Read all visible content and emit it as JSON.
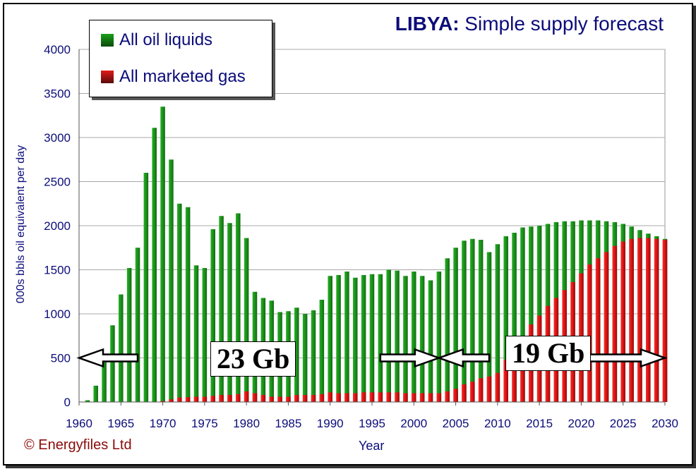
{
  "chart_data": {
    "type": "bar",
    "title_bold": "LIBYA:",
    "title_rest": " Simple supply forecast",
    "xlabel": "Year",
    "ylabel": "000s bbls oil equivalent per day",
    "ylim": [
      0,
      4000
    ],
    "yticks": [
      "0",
      "500",
      "1000",
      "1500",
      "2000",
      "2500",
      "3000",
      "3500",
      "4000"
    ],
    "xticks": [
      "1960",
      "1965",
      "1970",
      "1975",
      "1980",
      "1985",
      "1990",
      "1995",
      "2000",
      "2005",
      "2010",
      "2015",
      "2020",
      "2025",
      "2030"
    ],
    "grid": true,
    "legend_position": "top-left",
    "x_start": 1960,
    "series": [
      {
        "name": "All oil liquids",
        "color": "#1a8a1a",
        "values": [
          0,
          20,
          185,
          450,
          870,
          1220,
          1520,
          1750,
          2600,
          3110,
          3350,
          2750,
          2250,
          2210,
          1550,
          1520,
          1960,
          2110,
          2030,
          2140,
          1860,
          1250,
          1180,
          1150,
          1020,
          1030,
          1070,
          1000,
          1040,
          1160,
          1430,
          1440,
          1480,
          1410,
          1440,
          1450,
          1450,
          1500,
          1490,
          1430,
          1480,
          1430,
          1380,
          1480,
          1630,
          1750,
          1830,
          1850,
          1840,
          1700,
          1790,
          1880,
          1920,
          1980,
          1990,
          2000,
          2020,
          2040,
          2050,
          2050,
          2060,
          2060,
          2060,
          2050,
          2040,
          2020,
          1990,
          1950,
          1910,
          1880,
          1850
        ]
      },
      {
        "name": "All marketed gas",
        "color": "#d11010",
        "values": [
          0,
          0,
          0,
          0,
          0,
          0,
          0,
          0,
          0,
          0,
          10,
          30,
          50,
          55,
          60,
          60,
          70,
          80,
          80,
          90,
          120,
          100,
          80,
          60,
          60,
          60,
          80,
          80,
          80,
          90,
          110,
          100,
          100,
          100,
          110,
          110,
          110,
          110,
          110,
          100,
          100,
          100,
          100,
          100,
          120,
          150,
          200,
          230,
          270,
          290,
          330,
          480,
          580,
          730,
          880,
          980,
          1090,
          1180,
          1270,
          1360,
          1460,
          1560,
          1630,
          1700,
          1770,
          1820,
          1850,
          1860,
          1860,
          1850,
          1840
        ]
      }
    ],
    "annotations": [
      {
        "text": "23 Gb",
        "arrow_from": 1960,
        "arrow_to": 2003
      },
      {
        "text": "19 Gb",
        "arrow_from": 2003,
        "arrow_to": 2030
      }
    ]
  },
  "copyright": "© Energyfiles Ltd"
}
